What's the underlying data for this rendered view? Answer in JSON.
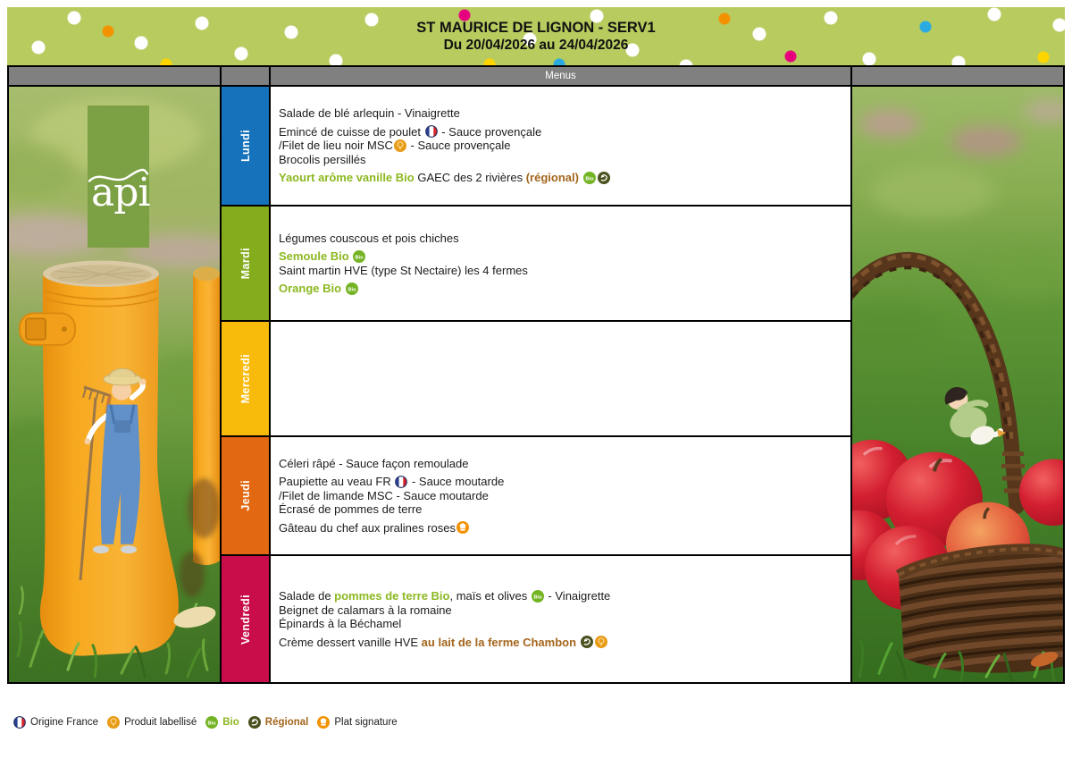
{
  "banner": {
    "title": "ST MAURICE DE LIGNON - SERV1",
    "subtitle": "Du 20/04/2026 au 24/04/2026"
  },
  "header": {
    "menus_label": "Menus"
  },
  "logo": {
    "text": "api"
  },
  "days": [
    {
      "label": "Lundi",
      "color": "#1572bb",
      "lines": [
        {
          "seg": [
            {
              "t": "Salade de blé arlequin - Vinaigrette"
            }
          ]
        },
        {
          "sp": true,
          "seg": [
            {
              "t": "Emincé de cuisse de poulet "
            },
            {
              "i": "france"
            },
            {
              "t": " - Sauce provençale"
            }
          ]
        },
        {
          "seg": [
            {
              "t": "/Filet de lieu noir MSC"
            },
            {
              "i": "label"
            },
            {
              "t": " - Sauce provençale"
            }
          ]
        },
        {
          "seg": [
            {
              "t": "Brocolis persillés"
            }
          ]
        },
        {
          "sp": true,
          "seg": [
            {
              "t": "Yaourt arôme vanille Bio",
              "c": "bio"
            },
            {
              "t": " GAEC des 2 rivières "
            },
            {
              "t": "(régional)",
              "c": "reg"
            },
            {
              "t": " "
            },
            {
              "i": "bio"
            },
            {
              "i": "regional"
            }
          ]
        }
      ]
    },
    {
      "label": "Mardi",
      "color": "#84ac1c",
      "lines": [
        {
          "seg": [
            {
              "t": "Légumes couscous et pois chiches"
            }
          ]
        },
        {
          "sp": true,
          "seg": [
            {
              "t": "Semoule Bio",
              "c": "bio"
            },
            {
              "t": " "
            },
            {
              "i": "bio"
            }
          ]
        },
        {
          "seg": [
            {
              "t": "Saint martin HVE (type St Nectaire) les 4 fermes"
            }
          ]
        },
        {
          "sp": true,
          "seg": [
            {
              "t": "Orange Bio",
              "c": "bio"
            },
            {
              "t": " "
            },
            {
              "i": "bio"
            }
          ]
        }
      ]
    },
    {
      "label": "Mercredi",
      "color": "#f8ba0b",
      "lines": []
    },
    {
      "label": "Jeudi",
      "color": "#e36812",
      "lines": [
        {
          "seg": [
            {
              "t": "Céleri râpé - Sauce façon remoulade"
            }
          ]
        },
        {
          "sp": true,
          "seg": [
            {
              "t": "Paupiette au veau FR "
            },
            {
              "i": "france"
            },
            {
              "t": " - Sauce moutarde"
            }
          ]
        },
        {
          "seg": [
            {
              "t": "/Filet de limande MSC - Sauce moutarde"
            }
          ]
        },
        {
          "seg": [
            {
              "t": "Écrasé de pommes de terre"
            }
          ]
        },
        {
          "sp": true,
          "seg": [
            {
              "t": "Gâteau du chef aux pralines roses"
            },
            {
              "i": "signature"
            }
          ]
        }
      ]
    },
    {
      "label": "Vendredi",
      "color": "#c90c4a",
      "lines": [
        {
          "seg": [
            {
              "t": "Salade de "
            },
            {
              "t": "pommes de terre Bio",
              "c": "bio"
            },
            {
              "t": ", maïs et olives "
            },
            {
              "i": "bio"
            },
            {
              "t": " - Vinaigrette"
            }
          ]
        },
        {
          "seg": [
            {
              "t": "Beignet de calamars à la romaine"
            }
          ]
        },
        {
          "seg": [
            {
              "t": "Épinards à la Béchamel"
            }
          ]
        },
        {
          "sp": true,
          "seg": [
            {
              "t": "Crème dessert vanille HVE "
            },
            {
              "t": "au lait de la ferme Chambon",
              "c": "reg"
            },
            {
              "t": " "
            },
            {
              "i": "regional"
            },
            {
              "i": "label"
            }
          ]
        }
      ]
    }
  ],
  "legend": [
    {
      "icon": "france",
      "label": "Origine France"
    },
    {
      "icon": "label",
      "label": "Produit labellisé"
    },
    {
      "icon": "bio",
      "label": "Bio",
      "style": "bio"
    },
    {
      "icon": "regional",
      "label": "Régional",
      "style": "reg"
    },
    {
      "icon": "signature",
      "label": "Plat signature"
    }
  ],
  "colors": {
    "banner_green": "#b7cb5f",
    "header_gray": "#808080",
    "bio_text": "#8cb821",
    "regional_text": "#a3651c",
    "bio_icon": "#74b424",
    "regional_icon": "#4c511f",
    "label_icon": "#e79b17",
    "signature_icon": "#f39200",
    "france_blue": "#2b3f92",
    "france_red": "#d6232c"
  }
}
